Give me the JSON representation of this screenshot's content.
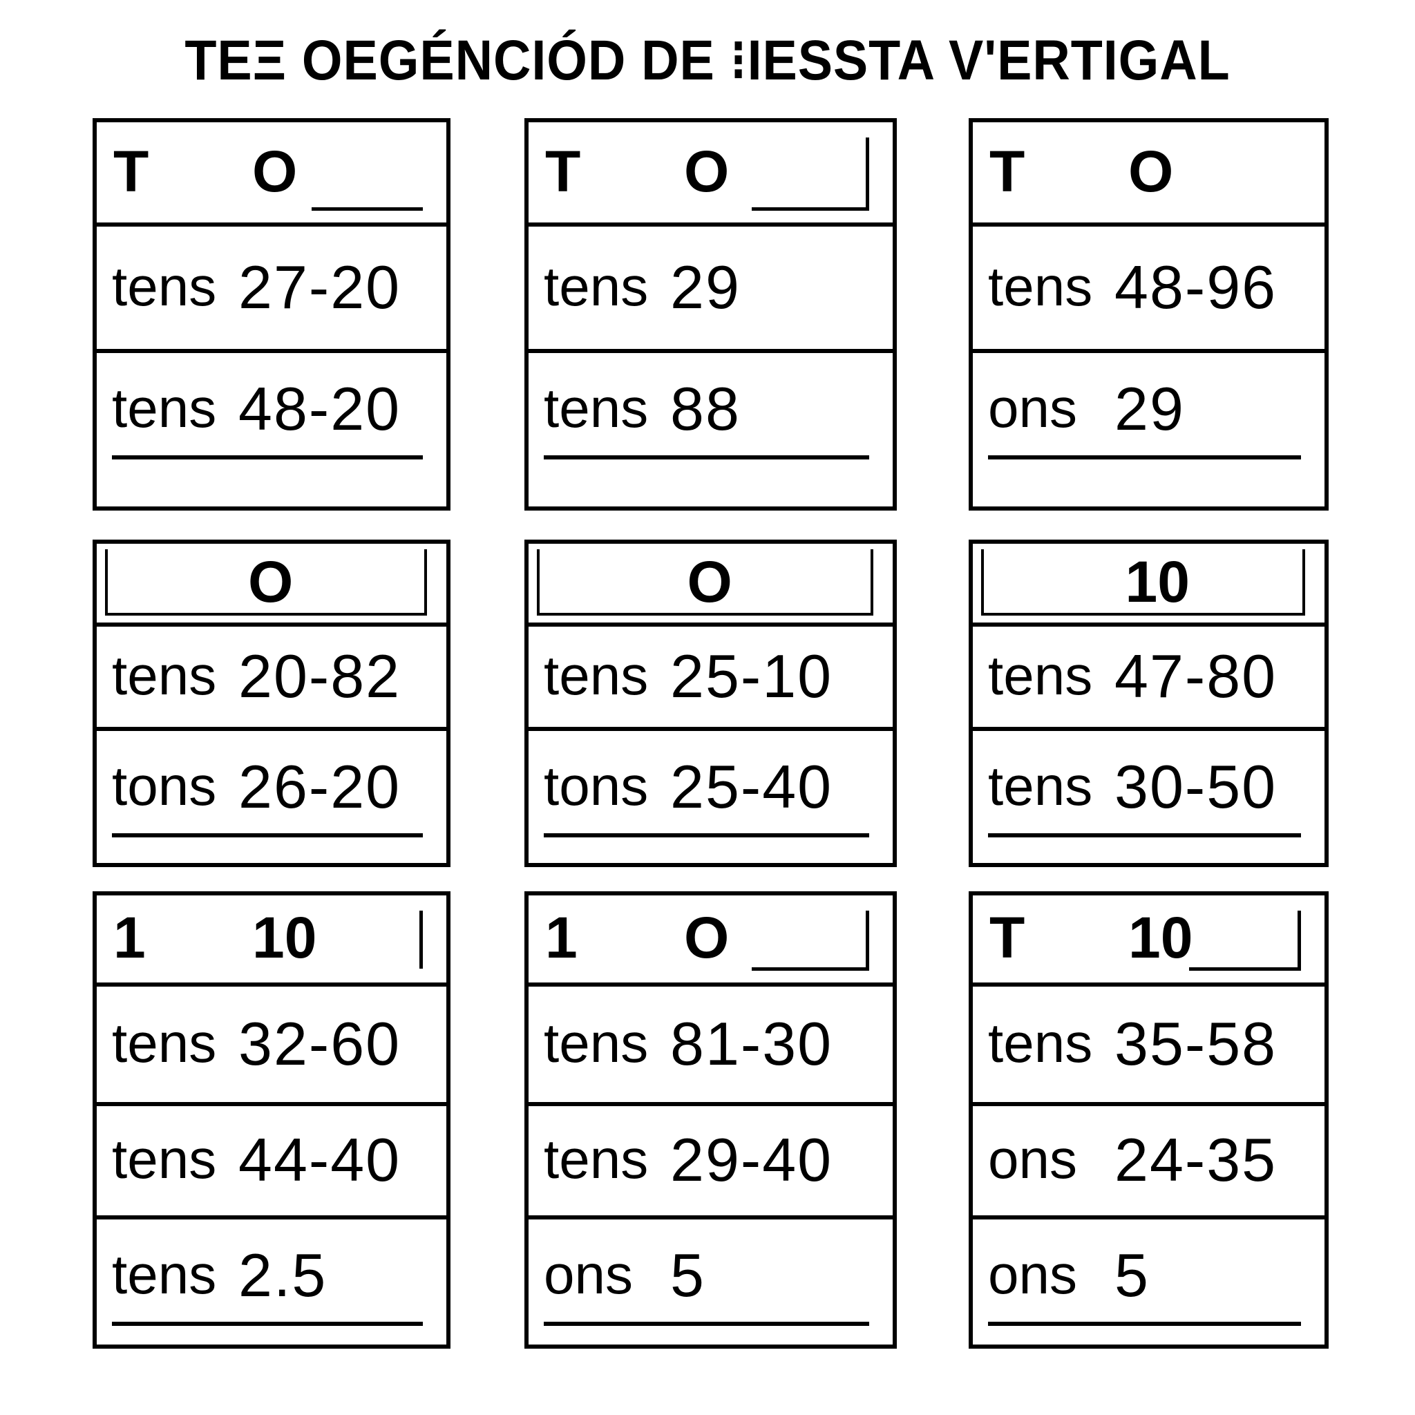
{
  "title": "TEΞ OEGÉNCIÓD DE ⁝IESSTA V'ERTIGAL",
  "blocks": [
    {
      "header": {
        "left": "T",
        "middle": "O"
      },
      "rows": [
        {
          "label": "tens",
          "value": "27-20"
        },
        {
          "label": "tens",
          "value": "48-20"
        }
      ]
    },
    {
      "header": {
        "left": "T",
        "middle": "O"
      },
      "rows": [
        {
          "label": "tens",
          "value": "29"
        },
        {
          "label": "tens",
          "value": "88"
        }
      ]
    },
    {
      "header": {
        "left": "T",
        "middle": "O"
      },
      "rows": [
        {
          "label": "tens",
          "value": "48-96"
        },
        {
          "label": "ons",
          "value": "29"
        }
      ]
    },
    {
      "header": {
        "left": "",
        "middle": "O"
      },
      "rows": [
        {
          "label": "tens",
          "value": "20-82"
        },
        {
          "label": "tons",
          "value": "26-20"
        }
      ]
    },
    {
      "header": {
        "left": "",
        "middle": "O"
      },
      "rows": [
        {
          "label": "tens",
          "value": "25-10"
        },
        {
          "label": "tons",
          "value": "25-40"
        }
      ]
    },
    {
      "header": {
        "left": "",
        "middle": "10"
      },
      "rows": [
        {
          "label": "tens",
          "value": "47-80"
        },
        {
          "label": "tens",
          "value": "30-50"
        }
      ]
    },
    {
      "header": {
        "left": "1",
        "middle": "10"
      },
      "rows": [
        {
          "label": "tens",
          "value": "32-60"
        },
        {
          "label": "tens",
          "value": "44-40"
        },
        {
          "label": "tens",
          "value": "2.5"
        }
      ]
    },
    {
      "header": {
        "left": "1",
        "middle": "O"
      },
      "rows": [
        {
          "label": "tens",
          "value": "81-30"
        },
        {
          "label": "tens",
          "value": "29-40"
        },
        {
          "label": "ons",
          "value": "5"
        }
      ]
    },
    {
      "header": {
        "left": "T",
        "middle": "10"
      },
      "rows": [
        {
          "label": "tens",
          "value": "35-58"
        },
        {
          "label": "ons",
          "value": "24-35"
        },
        {
          "label": "ons",
          "value": "5"
        }
      ]
    }
  ]
}
